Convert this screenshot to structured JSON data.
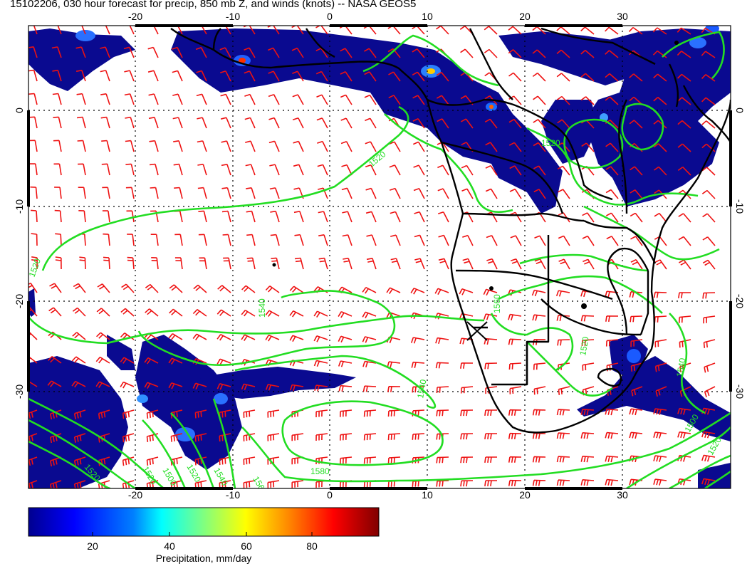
{
  "title": "15102206, 030 hour forecast for precip, 850 mb Z, and winds (knots) -- NASA GEOS5",
  "map": {
    "lon_ticks_top": [
      "-20",
      "-10",
      "0",
      "10",
      "20",
      "30"
    ],
    "lon_ticks_bottom": [
      "-20",
      "-10",
      "0",
      "10",
      "20",
      "30"
    ],
    "lat_ticks_left": [
      "0",
      "-10",
      "-20",
      "-30"
    ],
    "lat_ticks_right": [
      "0",
      "-10",
      "-20",
      "-30"
    ],
    "contour_labels": [
      "1520",
      "1520",
      "1520",
      "1540",
      "1540",
      "1560",
      "1580",
      "1560",
      "1540",
      "1520",
      "1500",
      "1520",
      "1520",
      "1520",
      "1540",
      "1500",
      "1520"
    ],
    "colors": {
      "contour": "#22dd22",
      "wind_barb": "#ee1111",
      "precip_base": "#0a0a90",
      "coastline": "#000000"
    }
  },
  "colorbar": {
    "ticks": [
      "20",
      "40",
      "60",
      "80"
    ],
    "label": "Precipitation, mm/day",
    "range": [
      0,
      100
    ],
    "colors": [
      "#00008f",
      "#0000ff",
      "#0080ff",
      "#00ffff",
      "#80ff80",
      "#ffff00",
      "#ff8000",
      "#ff0000",
      "#800000"
    ]
  }
}
